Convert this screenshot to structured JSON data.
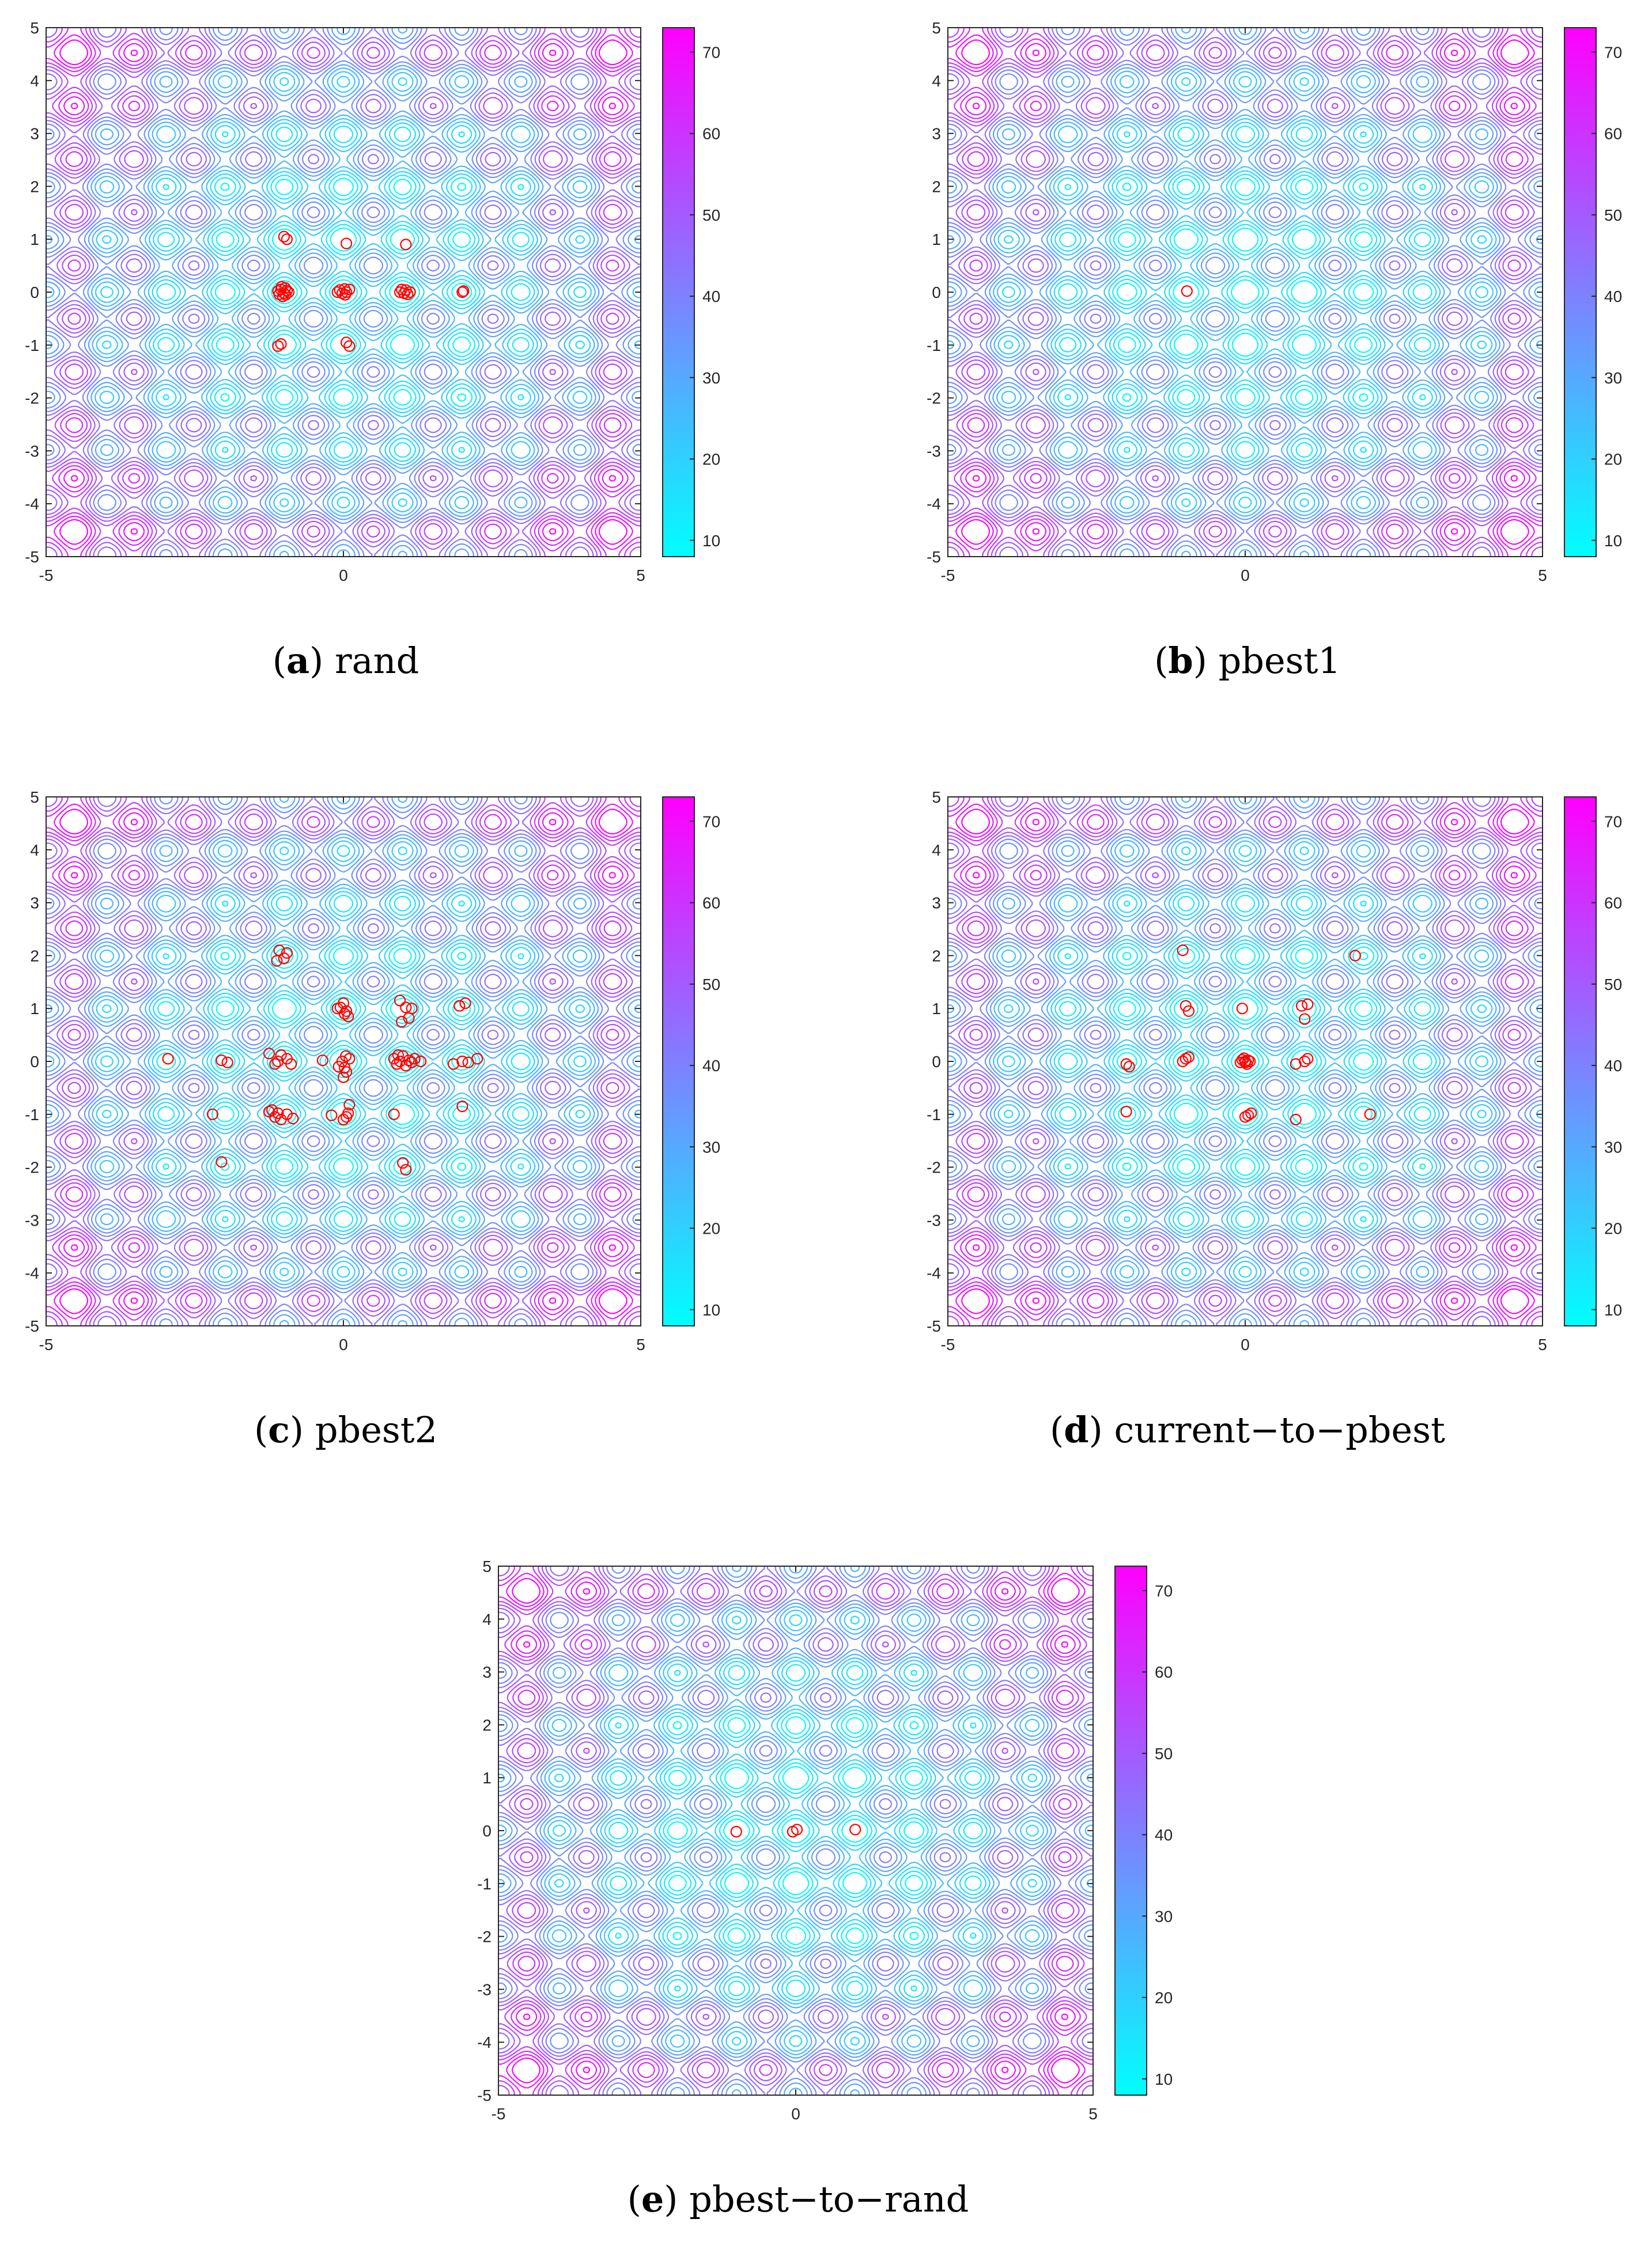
{
  "figure": {
    "panels": [
      {
        "letter": "a",
        "name": "rand"
      },
      {
        "letter": "b",
        "name": "pbest1"
      },
      {
        "letter": "c",
        "name": "pbest2"
      },
      {
        "letter": "d",
        "name": "current−to−pbest"
      },
      {
        "letter": "e",
        "name": "pbest−to−rand"
      }
    ]
  },
  "chart_data": [
    {
      "type": "scatter",
      "title": "(a) rand",
      "xlabel": "",
      "ylabel": "",
      "xlim": [
        -5,
        5
      ],
      "ylim": [
        -5,
        5
      ],
      "xticks": [
        "-5",
        "0",
        "5"
      ],
      "yticks": [
        "5",
        "4",
        "3",
        "2",
        "1",
        "0",
        "-1",
        "-2",
        "-3",
        "-4",
        "-5"
      ],
      "colorbar": {
        "ticks": [
          "70",
          "60",
          "50",
          "40",
          "30",
          "20",
          "10"
        ],
        "range": [
          8,
          73
        ],
        "colors": [
          "#00ffff",
          "#ff00ff"
        ]
      },
      "background": "contour",
      "marker_color": "#ff0000",
      "points": [
        [
          -1.05,
          0.05
        ],
        [
          -1.0,
          -0.02
        ],
        [
          -0.95,
          0.03
        ],
        [
          -1.08,
          -0.04
        ],
        [
          -0.98,
          0.08
        ],
        [
          -1.02,
          -0.08
        ],
        [
          -0.92,
          0.0
        ],
        [
          -1.1,
          0.02
        ],
        [
          -0.97,
          -0.05
        ],
        [
          -1.04,
          0.1
        ],
        [
          -0.06,
          0.04
        ],
        [
          0.02,
          0.06
        ],
        [
          -0.02,
          -0.02
        ],
        [
          0.05,
          0.0
        ],
        [
          -0.1,
          0.0
        ],
        [
          0.1,
          0.05
        ],
        [
          0.03,
          -0.05
        ],
        [
          0.98,
          0.05
        ],
        [
          1.02,
          -0.02
        ],
        [
          1.05,
          0.04
        ],
        [
          0.95,
          0.0
        ],
        [
          1.08,
          -0.04
        ],
        [
          1.12,
          0.0
        ],
        [
          2.0,
          0.0
        ],
        [
          2.02,
          0.02
        ],
        [
          -1.0,
          1.05
        ],
        [
          -0.95,
          1.0
        ],
        [
          0.05,
          0.92
        ],
        [
          1.05,
          0.9
        ],
        [
          -1.1,
          -1.02
        ],
        [
          -1.05,
          -0.98
        ],
        [
          0.05,
          -0.95
        ],
        [
          0.1,
          -1.02
        ]
      ]
    },
    {
      "type": "scatter",
      "title": "(b) pbest1",
      "xlabel": "",
      "ylabel": "",
      "xlim": [
        -5,
        5
      ],
      "ylim": [
        -5,
        5
      ],
      "xticks": [
        "-5",
        "0",
        "5"
      ],
      "yticks": [
        "5",
        "4",
        "3",
        "2",
        "1",
        "0",
        "-1",
        "-2",
        "-3",
        "-4",
        "-5"
      ],
      "colorbar": {
        "ticks": [
          "70",
          "60",
          "50",
          "40",
          "30",
          "20",
          "10"
        ],
        "range": [
          8,
          73
        ],
        "colors": [
          "#00ffff",
          "#ff00ff"
        ]
      },
      "background": "contour",
      "marker_color": "#ff0000",
      "points": [
        [
          -0.98,
          0.02
        ]
      ]
    },
    {
      "type": "scatter",
      "title": "(c) pbest2",
      "xlabel": "",
      "ylabel": "",
      "xlim": [
        -5,
        5
      ],
      "ylim": [
        -5,
        5
      ],
      "xticks": [
        "-5",
        "0",
        "5"
      ],
      "yticks": [
        "5",
        "4",
        "3",
        "2",
        "1",
        "0",
        "-1",
        "-2",
        "-3",
        "-4",
        "-5"
      ],
      "colorbar": {
        "ticks": [
          "70",
          "60",
          "50",
          "40",
          "30",
          "20",
          "10"
        ],
        "range": [
          8,
          73
        ],
        "colors": [
          "#00ffff",
          "#ff00ff"
        ]
      },
      "background": "contour",
      "marker_color": "#ff0000",
      "points": [
        [
          -2.95,
          0.05
        ],
        [
          -2.05,
          0.02
        ],
        [
          -1.95,
          -0.02
        ],
        [
          -1.25,
          0.15
        ],
        [
          -1.1,
          0.0
        ],
        [
          -1.05,
          0.12
        ],
        [
          -0.95,
          0.05
        ],
        [
          -0.88,
          -0.05
        ],
        [
          -1.15,
          -0.05
        ],
        [
          -1.08,
          2.1
        ],
        [
          -1.0,
          1.95
        ],
        [
          -0.95,
          2.05
        ],
        [
          -1.12,
          1.9
        ],
        [
          -0.05,
          1.02
        ],
        [
          0.0,
          1.1
        ],
        [
          0.05,
          0.95
        ],
        [
          0.08,
          0.85
        ],
        [
          -0.1,
          1.0
        ],
        [
          0.02,
          0.9
        ],
        [
          0.95,
          1.15
        ],
        [
          1.05,
          1.02
        ],
        [
          1.1,
          0.82
        ],
        [
          0.98,
          0.75
        ],
        [
          1.15,
          1.0
        ],
        [
          1.95,
          1.05
        ],
        [
          2.05,
          1.1
        ],
        [
          -0.02,
          0.0
        ],
        [
          0.04,
          0.1
        ],
        [
          -0.08,
          -0.1
        ],
        [
          0.05,
          -0.2
        ],
        [
          0.0,
          -0.3
        ],
        [
          -0.35,
          0.02
        ],
        [
          0.1,
          0.05
        ],
        [
          0.02,
          -0.12
        ],
        [
          0.85,
          0.05
        ],
        [
          0.9,
          -0.05
        ],
        [
          0.95,
          0.0
        ],
        [
          1.0,
          0.1
        ],
        [
          1.05,
          -0.08
        ],
        [
          1.1,
          0.02
        ],
        [
          1.15,
          -0.02
        ],
        [
          0.92,
          0.12
        ],
        [
          1.2,
          0.05
        ],
        [
          1.3,
          0.0
        ],
        [
          1.85,
          -0.05
        ],
        [
          2.0,
          0.0
        ],
        [
          2.1,
          -0.02
        ],
        [
          2.25,
          0.05
        ],
        [
          2.0,
          -0.85
        ],
        [
          -2.2,
          -1.0
        ],
        [
          -1.2,
          -0.92
        ],
        [
          -1.15,
          -1.05
        ],
        [
          -1.1,
          -0.98
        ],
        [
          -1.05,
          -1.1
        ],
        [
          -0.95,
          -1.0
        ],
        [
          -0.85,
          -1.08
        ],
        [
          -1.25,
          -0.95
        ],
        [
          -0.2,
          -1.02
        ],
        [
          0.0,
          -1.1
        ],
        [
          0.08,
          -0.98
        ],
        [
          0.1,
          -0.82
        ],
        [
          0.05,
          -1.05
        ],
        [
          0.85,
          -1.0
        ],
        [
          -2.05,
          -1.9
        ],
        [
          1.0,
          -1.92
        ],
        [
          1.05,
          -2.05
        ]
      ]
    },
    {
      "type": "scatter",
      "title": "(d) current−to−pbest",
      "xlabel": "",
      "ylabel": "",
      "xlim": [
        -5,
        5
      ],
      "ylim": [
        -5,
        5
      ],
      "xticks": [
        "-5",
        "0",
        "5"
      ],
      "yticks": [
        "5",
        "4",
        "3",
        "2",
        "1",
        "0",
        "-1",
        "-2",
        "-3",
        "-4",
        "-5"
      ],
      "colorbar": {
        "ticks": [
          "70",
          "60",
          "50",
          "40",
          "30",
          "20",
          "10"
        ],
        "range": [
          8,
          73
        ],
        "colors": [
          "#00ffff",
          "#ff00ff"
        ]
      },
      "background": "contour",
      "marker_color": "#ff0000",
      "points": [
        [
          -0.05,
          0.03
        ],
        [
          0.0,
          -0.02
        ],
        [
          0.05,
          0.02
        ],
        [
          -0.02,
          0.06
        ],
        [
          0.03,
          -0.05
        ],
        [
          0.08,
          0.0
        ],
        [
          -0.08,
          -0.02
        ],
        [
          0.0,
          0.0
        ],
        [
          -2.0,
          -0.05
        ],
        [
          -1.95,
          -0.1
        ],
        [
          -1.0,
          0.05
        ],
        [
          -0.95,
          0.08
        ],
        [
          -1.05,
          0.0
        ],
        [
          -1.05,
          2.1
        ],
        [
          -1.0,
          1.05
        ],
        [
          -0.95,
          0.95
        ],
        [
          -0.05,
          1.0
        ],
        [
          0.95,
          1.05
        ],
        [
          1.05,
          1.08
        ],
        [
          1.0,
          0.8
        ],
        [
          1.85,
          2.0
        ],
        [
          0.85,
          -0.05
        ],
        [
          1.0,
          0.0
        ],
        [
          1.05,
          0.05
        ],
        [
          -2.0,
          -0.95
        ],
        [
          0.0,
          -1.05
        ],
        [
          0.05,
          -1.02
        ],
        [
          0.1,
          -0.98
        ],
        [
          0.85,
          -1.1
        ],
        [
          2.1,
          -1.0
        ]
      ]
    },
    {
      "type": "scatter",
      "title": "(e) pbest−to−rand",
      "xlabel": "",
      "ylabel": "",
      "xlim": [
        -5,
        5
      ],
      "ylim": [
        -5,
        5
      ],
      "xticks": [
        "-5",
        "0",
        "5"
      ],
      "yticks": [
        "5",
        "4",
        "3",
        "2",
        "1",
        "0",
        "-1",
        "-2",
        "-3",
        "-4",
        "-5"
      ],
      "colorbar": {
        "ticks": [
          "70",
          "60",
          "50",
          "40",
          "30",
          "20",
          "10"
        ],
        "range": [
          8,
          73
        ],
        "colors": [
          "#00ffff",
          "#ff00ff"
        ]
      },
      "background": "contour",
      "marker_color": "#ff0000",
      "points": [
        [
          -1.0,
          -0.02
        ],
        [
          -0.05,
          -0.02
        ],
        [
          0.02,
          0.02
        ],
        [
          1.0,
          0.02
        ]
      ]
    }
  ]
}
